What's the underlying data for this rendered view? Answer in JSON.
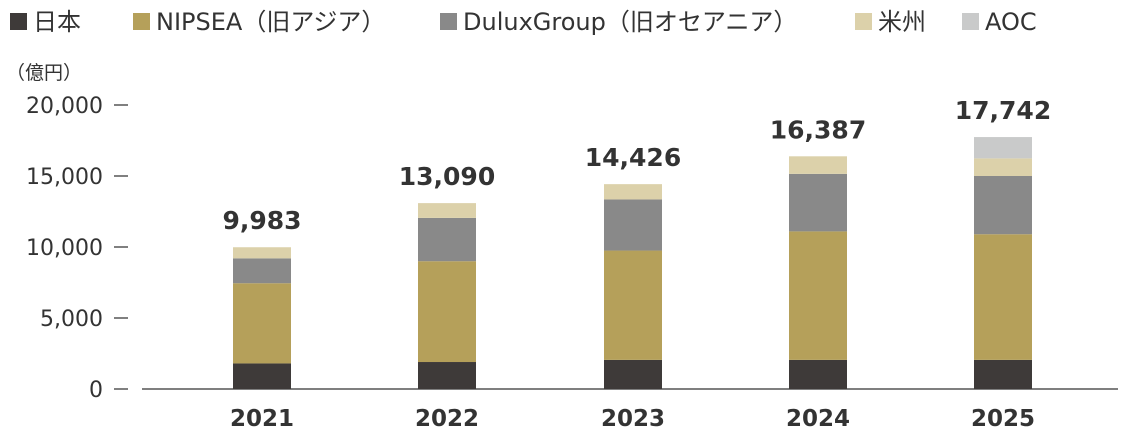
{
  "chart_data": {
    "type": "bar",
    "stacked": true,
    "unit": "（億円）",
    "categories": [
      "2021",
      "2022",
      "2023",
      "2024",
      "2025"
    ],
    "series": [
      {
        "name": "日本",
        "color": "#3e3a39",
        "values": [
          1800,
          1900,
          2050,
          2050,
          2050
        ]
      },
      {
        "name": "NIPSEA（旧アジア）",
        "color": "#b5a05a",
        "values": [
          5650,
          7100,
          7700,
          9050,
          8850
        ]
      },
      {
        "name": "DuluxGroup（旧オセアニア）",
        "color": "#898989",
        "values": [
          1750,
          3050,
          3600,
          4050,
          4100
        ]
      },
      {
        "name": "米州",
        "color": "#dcd1aa",
        "values": [
          783,
          1040,
          1076,
          1237,
          1242
        ]
      },
      {
        "name": "AOC",
        "color": "#c9caca",
        "values": [
          0,
          0,
          0,
          0,
          1500
        ]
      }
    ],
    "totals": [
      "9,983",
      "13,090",
      "14,426",
      "16,387",
      "17,742"
    ],
    "ylim": [
      0,
      20000
    ],
    "yticks": [
      {
        "value": 0,
        "label": "0"
      },
      {
        "value": 5000,
        "label": "5,000"
      },
      {
        "value": 10000,
        "label": "10,000"
      },
      {
        "value": 15000,
        "label": "15,000"
      },
      {
        "value": 20000,
        "label": "20,000"
      }
    ],
    "legend_position": "top-left",
    "grid": false
  }
}
